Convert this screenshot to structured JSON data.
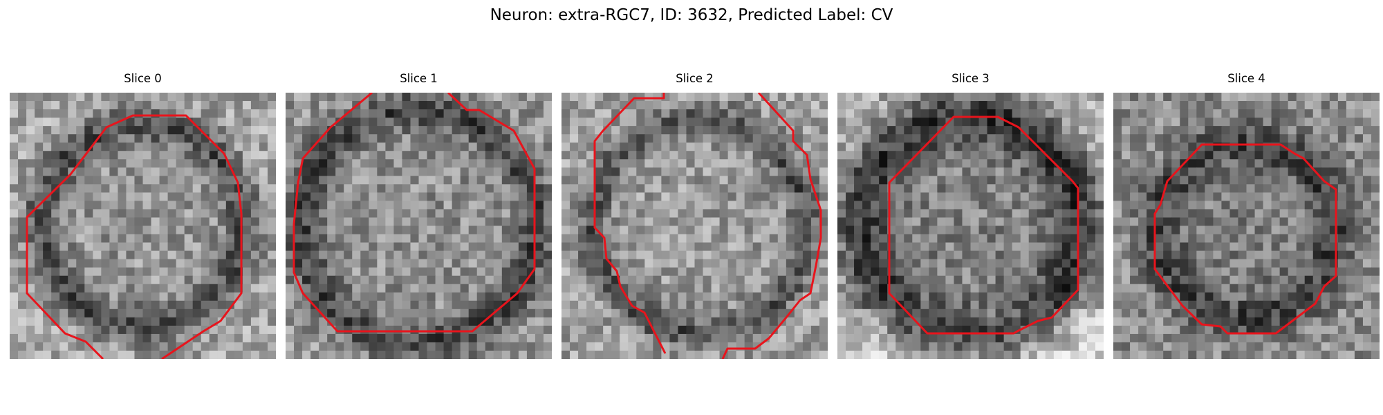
{
  "figure": {
    "title": "Neuron: extra-RGC7, ID: 3632, Predicted Label: CV"
  },
  "panels": [
    {
      "title": "Slice 0",
      "contour_color": "#e8141c"
    },
    {
      "title": "Slice 1",
      "contour_color": "#e8141c"
    },
    {
      "title": "Slice 2",
      "contour_color": "#e8141c"
    },
    {
      "title": "Slice 3",
      "contour_color": "#e8141c"
    },
    {
      "title": "Slice 4",
      "contour_color": "#e8141c"
    }
  ]
}
